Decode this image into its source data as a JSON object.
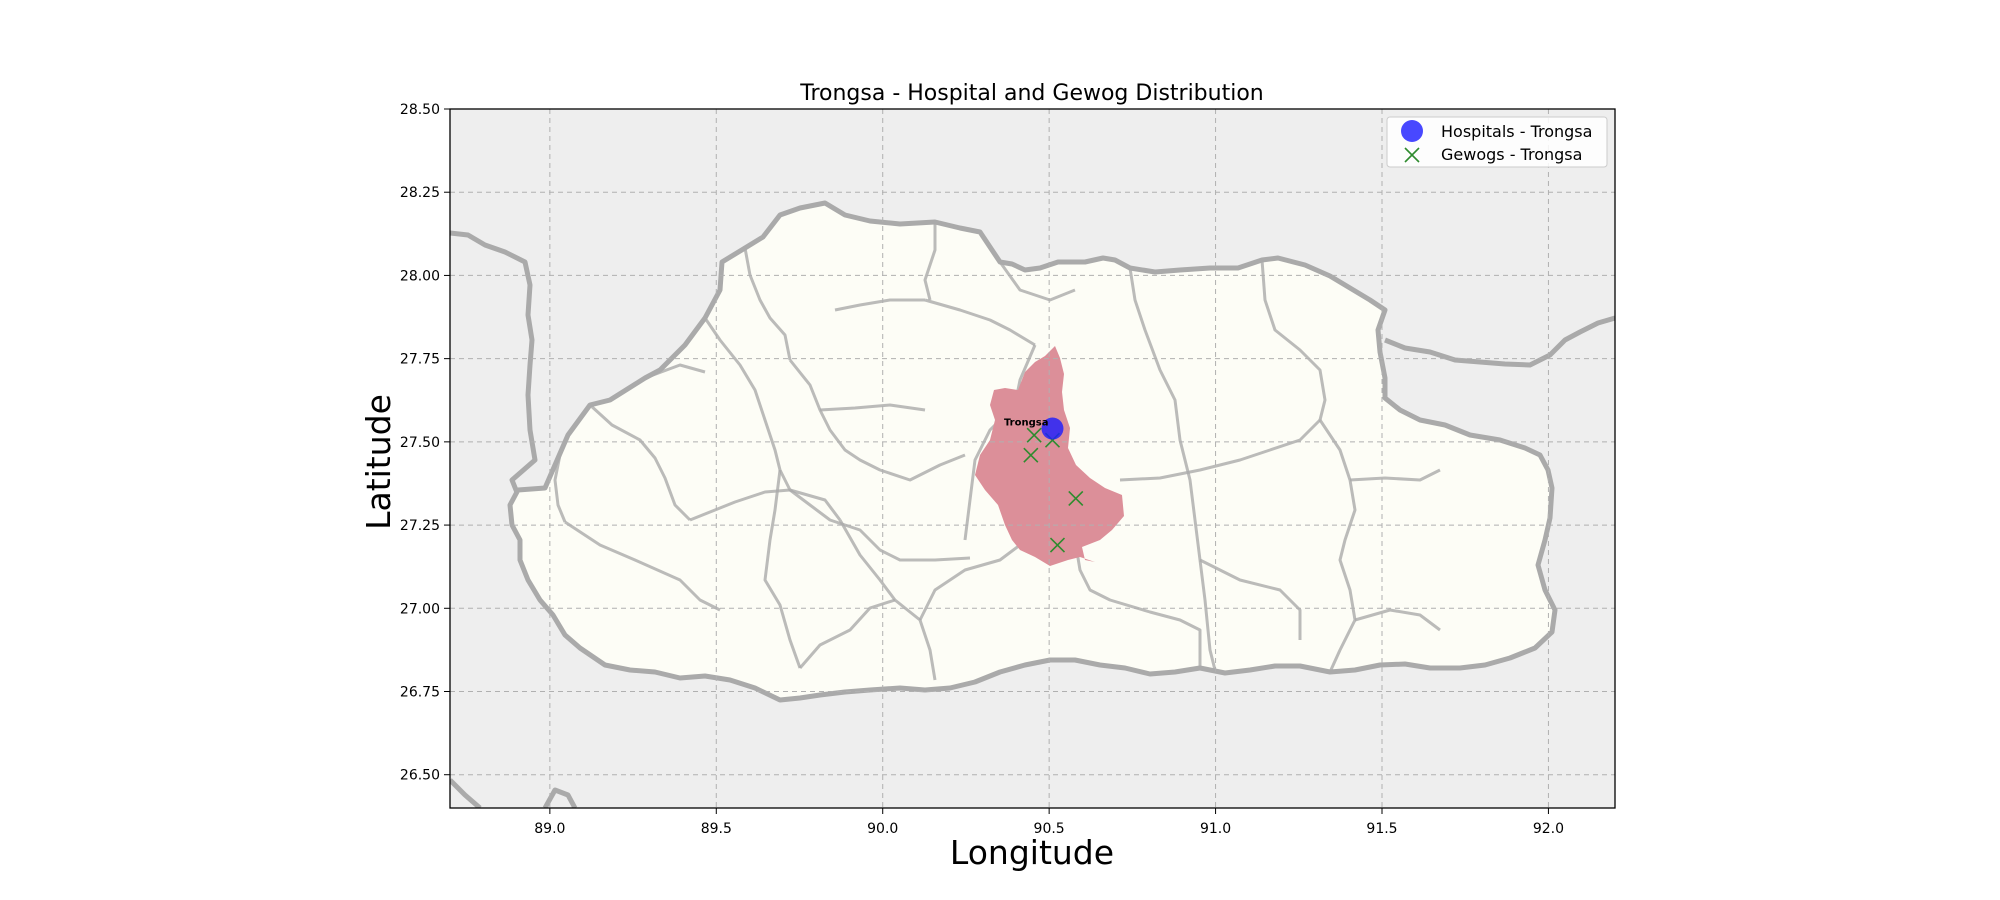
{
  "chart_data": {
    "type": "scatter",
    "title": "Trongsa - Hospital and Gewog Distribution",
    "xlabel": "Longitude",
    "ylabel": "Latitude",
    "xlim": [
      88.7,
      92.2
    ],
    "ylim": [
      26.4,
      28.5
    ],
    "xticks": [
      "89.0",
      "89.5",
      "90.0",
      "90.5",
      "91.0",
      "91.5",
      "92.0"
    ],
    "yticks": [
      "26.50",
      "26.75",
      "27.00",
      "27.25",
      "27.50",
      "27.75",
      "28.00",
      "28.25",
      "28.50"
    ],
    "grid": true,
    "legend_position": "top-right",
    "background_color": "#eeeeee",
    "country_fill": "#fdfdf6",
    "border_color": "#aaaaaa",
    "highlight_fill": "#dc8f99",
    "series": [
      {
        "name": "Hospitals - Trongsa",
        "marker": "circle",
        "color": "#1a1aff",
        "points": [
          {
            "x": 90.51,
            "y": 27.54,
            "label": "Trongsa"
          }
        ]
      },
      {
        "name": "Gewogs - Trongsa",
        "marker": "x",
        "color": "#2e8b2e",
        "points": [
          {
            "x": 90.455,
            "y": 27.52
          },
          {
            "x": 90.51,
            "y": 27.505
          },
          {
            "x": 90.445,
            "y": 27.46
          },
          {
            "x": 90.58,
            "y": 27.33
          },
          {
            "x": 90.525,
            "y": 27.19
          }
        ]
      }
    ]
  }
}
